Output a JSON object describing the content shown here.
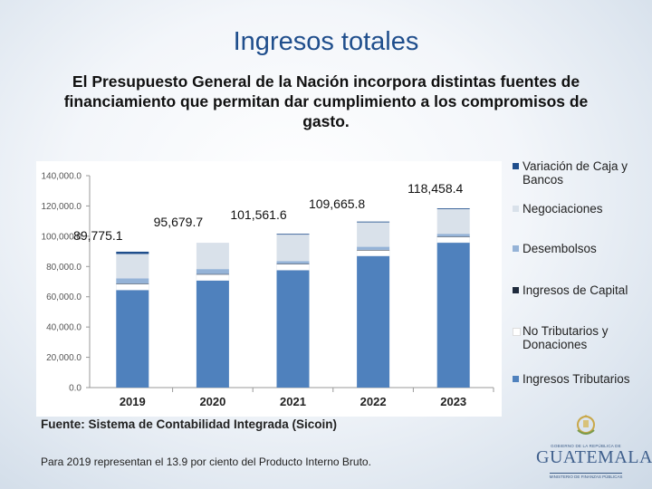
{
  "slide": {
    "title": "Ingresos totales",
    "subtitle": "El Presupuesto General de la Nación incorpora distintas fuentes de financiamiento que permitan dar cumplimiento a los compromisos de gasto.",
    "source": "Fuente: Sistema de Contabilidad Integrada (Sicoin)",
    "footnote": "Para 2019 representan el 13.9 por ciento del Producto Interno Bruto."
  },
  "logo": {
    "top_text": "GOBIERNO DE LA REPÚBLICA DE",
    "name": "GUATEMALA",
    "sub_text": "MINISTERIO DE FINANZAS PÚBLICAS"
  },
  "colors": {
    "ingresos_tributarios": "#4f81bd",
    "no_tributarios": "#ffffff",
    "ingresos_capital": "#1f2b3d",
    "desembolsos": "#95b3d7",
    "negociaciones": "#d9e1ea",
    "variacion_caja": "#1f4e8c"
  },
  "chart_data": {
    "type": "bar",
    "stacked": true,
    "categories": [
      "2019",
      "2020",
      "2021",
      "2022",
      "2023"
    ],
    "totals": [
      89775.1,
      95679.7,
      101561.6,
      109665.8,
      118458.4
    ],
    "total_labels": [
      "89,775.1",
      "95,679.7",
      "101,561.6",
      "109,665.8",
      "118,458.4"
    ],
    "ylim": [
      0,
      140000
    ],
    "yticks": [
      0,
      20000,
      40000,
      60000,
      80000,
      100000,
      120000,
      140000
    ],
    "ytick_labels": [
      "0.0",
      "20,000.0",
      "40,000.0",
      "60,000.0",
      "80,000.0",
      "100,000.0",
      "120,000.0",
      "140,000.0"
    ],
    "series": [
      {
        "name": "Ingresos Tributarios",
        "color_key": "ingresos_tributarios",
        "values": [
          64500,
          70800,
          77600,
          87000,
          95800
        ]
      },
      {
        "name": "No Tributarios y Donaciones",
        "color_key": "no_tributarios",
        "values": [
          4000,
          4000,
          4000,
          3800,
          3800
        ]
      },
      {
        "name": "Ingresos de Capital",
        "color_key": "ingresos_capital",
        "values": [
          200,
          200,
          200,
          200,
          200
        ]
      },
      {
        "name": "Desembolsos",
        "color_key": "desembolsos",
        "values": [
          3500,
          3300,
          1800,
          2000,
          1800
        ]
      },
      {
        "name": "Negociaciones",
        "color_key": "negociaciones",
        "values": [
          16075.1,
          17379.7,
          17461.6,
          16165.8,
          16358.4
        ]
      },
      {
        "name": "Variación de Caja y Bancos",
        "color_key": "variacion_caja",
        "values": [
          1500,
          0,
          500,
          500,
          500
        ]
      }
    ],
    "legend": [
      {
        "name": "Variación de Caja y Bancos",
        "color_key": "variacion_caja"
      },
      {
        "name": "Negociaciones",
        "color_key": "negociaciones"
      },
      {
        "name": "Desembolsos",
        "color_key": "desembolsos"
      },
      {
        "name": "Ingresos de Capital",
        "color_key": "ingresos_capital"
      },
      {
        "name": "No Tributarios y Donaciones",
        "color_key": "no_tributarios"
      },
      {
        "name": "Ingresos Tributarios",
        "color_key": "ingresos_tributarios"
      }
    ],
    "legend_position": "right"
  }
}
